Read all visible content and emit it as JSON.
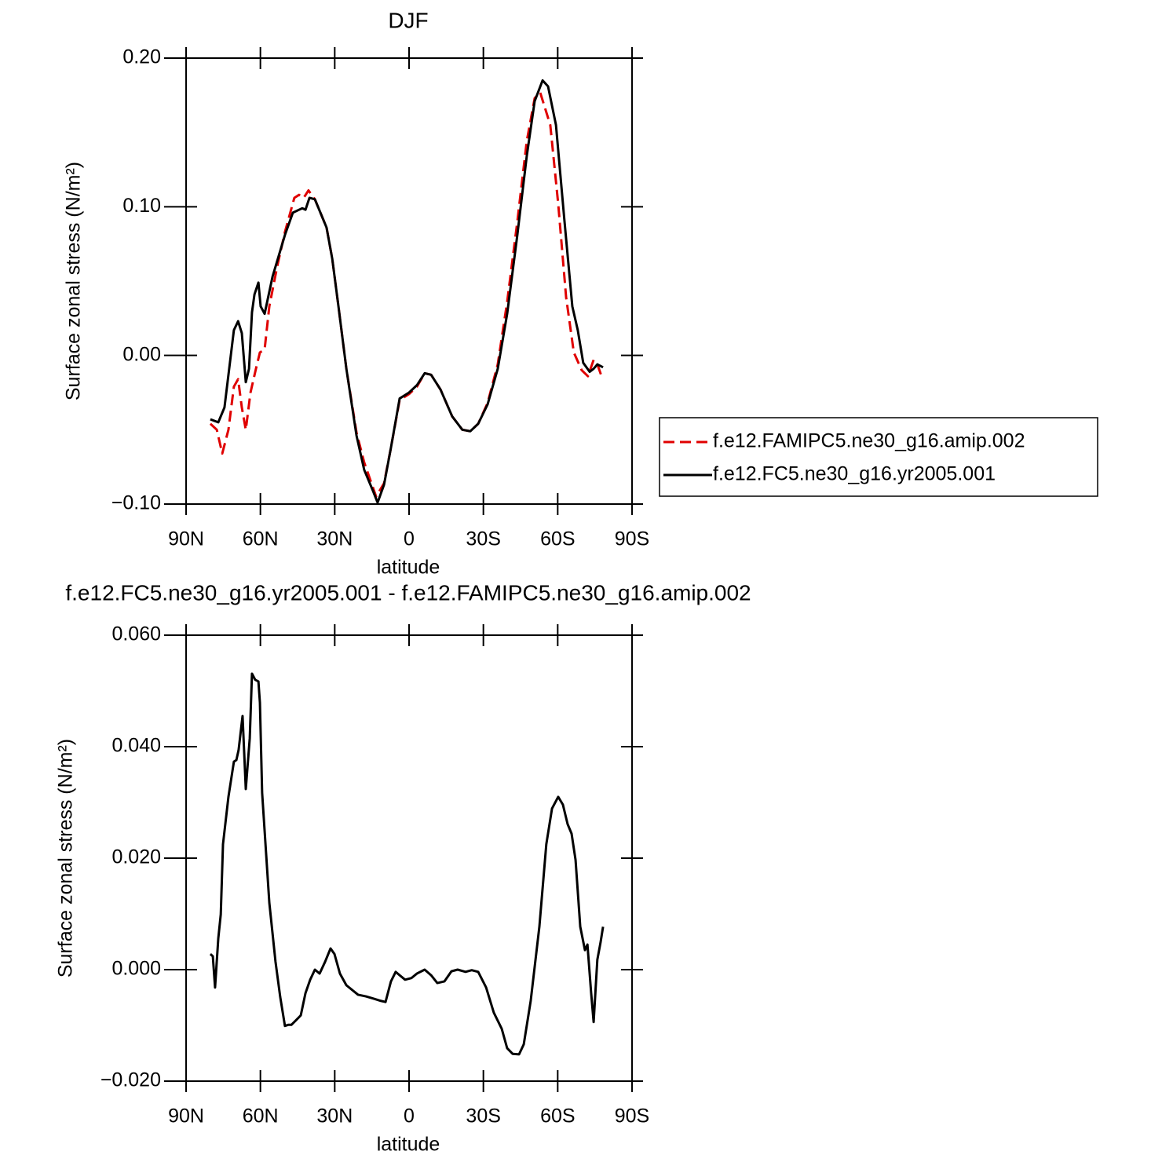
{
  "chart_data": [
    {
      "type": "line",
      "title": "DJF",
      "xlabel": "latitude",
      "ylabel": "Surface zonal stress (N/m²)",
      "xlim": [
        90,
        -90
      ],
      "xticks": [
        {
          "value": 90,
          "label": "90N"
        },
        {
          "value": 60,
          "label": "60N"
        },
        {
          "value": 30,
          "label": "30N"
        },
        0,
        {
          "value": -30,
          "label": "30S"
        },
        {
          "value": -60,
          "label": "60S"
        },
        {
          "value": -90,
          "label": "90S"
        }
      ],
      "ylim": [
        -0.1,
        0.2
      ],
      "yticks": [
        {
          "value": -0.1,
          "label": "−0.10"
        },
        {
          "value": 0,
          "label": "0.00"
        },
        {
          "value": 0.1,
          "label": "0.10"
        },
        {
          "value": 0.2,
          "label": "0.20"
        }
      ],
      "legend": "outside-right",
      "series": [
        {
          "name": "f.e12.FAMIPC5.ne30_g16.amip.002",
          "color": "#e00000",
          "dashed": true,
          "x": [
            80.2,
            77.6,
            75.4,
            72.9,
            70.7,
            69,
            67.5,
            65.9,
            64,
            61.8,
            60.2,
            58.3,
            56.4,
            53.2,
            50.1,
            46.3,
            44.4,
            42.5,
            40.6,
            38,
            33.3,
            31,
            28.5,
            25.3,
            21.2,
            18.1,
            13.3,
            10.1,
            7.3,
            3.8,
            0,
            -3.2,
            -6.3,
            -8.9,
            -12.7,
            -17.4,
            -21.5,
            -24.7,
            -27.9,
            -31.7,
            -35.8,
            -39.6,
            -43.7,
            -47.5,
            -50.7,
            -52.9,
            -57,
            -60.2,
            -63.4,
            -66.5,
            -69.7,
            -72.2,
            -74.5,
            -76,
            -77.9
          ],
          "values": [
            -0.046,
            -0.05,
            -0.066,
            -0.05,
            -0.021,
            -0.016,
            -0.035,
            -0.05,
            -0.025,
            -0.009,
            0.002,
            0.004,
            0.033,
            0.06,
            0.083,
            0.106,
            0.108,
            0.106,
            0.111,
            0.105,
            0.086,
            0.065,
            0.033,
            -0.009,
            -0.052,
            -0.072,
            -0.095,
            -0.086,
            -0.062,
            -0.03,
            -0.026,
            -0.021,
            -0.012,
            -0.013,
            -0.023,
            -0.041,
            -0.05,
            -0.051,
            -0.046,
            -0.032,
            -0.006,
            0.036,
            0.09,
            0.144,
            0.173,
            0.177,
            0.155,
            0.102,
            0.039,
            0.002,
            -0.01,
            -0.014,
            -0.003,
            -0.006,
            -0.015
          ]
        },
        {
          "name": "f.e12.FC5.ne30_g16.yr2005.001",
          "color": "#000000",
          "dashed": false,
          "x": [
            80.2,
            77,
            74.5,
            70.7,
            69,
            67.5,
            65.9,
            64.6,
            63.4,
            62.4,
            60.8,
            59.9,
            58.3,
            55.1,
            50.1,
            46.9,
            43.1,
            41.8,
            40.2,
            38,
            33.3,
            31,
            28.5,
            25.3,
            21.2,
            18.1,
            14.6,
            12.7,
            10.1,
            7.3,
            3.8,
            0,
            -3.2,
            -6.3,
            -8.9,
            -12.7,
            -17.4,
            -21.5,
            -24.7,
            -27.9,
            -31.7,
            -35.8,
            -39.6,
            -43.7,
            -47.5,
            -50.7,
            -53.9,
            -56.1,
            -59.3,
            -62.7,
            -65.9,
            -68.1,
            -70.3,
            -72.9,
            -74.5,
            -76,
            -78.3
          ],
          "values": [
            -0.043,
            -0.045,
            -0.035,
            0.017,
            0.023,
            0.015,
            -0.018,
            -0.009,
            0.029,
            0.041,
            0.049,
            0.033,
            0.028,
            0.053,
            0.081,
            0.096,
            0.099,
            0.098,
            0.106,
            0.105,
            0.086,
            0.065,
            0.033,
            -0.009,
            -0.054,
            -0.077,
            -0.091,
            -0.099,
            -0.087,
            -0.062,
            -0.029,
            -0.025,
            -0.02,
            -0.012,
            -0.013,
            -0.023,
            -0.041,
            -0.05,
            -0.051,
            -0.046,
            -0.033,
            -0.009,
            0.028,
            0.081,
            0.134,
            0.171,
            0.185,
            0.181,
            0.155,
            0.091,
            0.033,
            0.017,
            -0.005,
            -0.011,
            -0.009,
            -0.006,
            -0.008
          ]
        }
      ]
    },
    {
      "type": "line",
      "title": "f.e12.FC5.ne30_g16.yr2005.001 - f.e12.FAMIPC5.ne30_g16.amip.002",
      "xlabel": "latitude",
      "ylabel": "Surface zonal stress (N/m²)",
      "xlim": [
        90,
        -90
      ],
      "xticks": [
        {
          "value": 90,
          "label": "90N"
        },
        {
          "value": 60,
          "label": "60N"
        },
        {
          "value": 30,
          "label": "30N"
        },
        0,
        {
          "value": -30,
          "label": "30S"
        },
        {
          "value": -60,
          "label": "60S"
        },
        {
          "value": -90,
          "label": "90S"
        }
      ],
      "ylim": [
        -0.02,
        0.06
      ],
      "yticks": [
        {
          "value": -0.02,
          "label": "−0.020"
        },
        {
          "value": 0,
          "label": "0.000"
        },
        {
          "value": 0.02,
          "label": "0.020"
        },
        {
          "value": 0.04,
          "label": "0.040"
        },
        {
          "value": 0.06,
          "label": "0.060"
        }
      ],
      "series": [
        {
          "color": "#000000",
          "dashed": false,
          "x": [
            80.2,
            79.2,
            78.3,
            77,
            76,
            75.1,
            72.9,
            70.7,
            69.7,
            68.8,
            67.2,
            65.9,
            64.3,
            63.4,
            62.1,
            60.8,
            60.2,
            59.3,
            56.4,
            53.9,
            52,
            50.1,
            48.8,
            47.5,
            45.9,
            43.7,
            41.8,
            39.9,
            38,
            36.1,
            33.9,
            31.7,
            30.1,
            27.9,
            25.3,
            20.6,
            17.4,
            14.3,
            11.4,
            9.5,
            7.3,
            5.4,
            3.8,
            1.6,
            -1,
            -3.2,
            -6.3,
            -8.9,
            -11.4,
            -14.3,
            -17.1,
            -19.6,
            -22.8,
            -25.3,
            -27.9,
            -31.1,
            -34.2,
            -37.4,
            -39.6,
            -41.8,
            -44.4,
            -46.3,
            -49.1,
            -52.6,
            -55.4,
            -57.7,
            -60.2,
            -62.1,
            -64,
            -65.6,
            -67.2,
            -69.1,
            -71,
            -72,
            -73.5,
            -74.5,
            -76,
            -77.3,
            -78.3
          ],
          "values": [
            0.0028,
            0.0024,
            -0.0032,
            0.0056,
            0.0099,
            0.0225,
            0.031,
            0.0373,
            0.0376,
            0.0394,
            0.0455,
            0.0324,
            0.0415,
            0.0531,
            0.052,
            0.0517,
            0.0479,
            0.0317,
            0.012,
            0.0014,
            -0.0049,
            -0.0101,
            -0.0099,
            -0.0099,
            -0.0092,
            -0.0082,
            -0.0042,
            -0.0018,
            0,
            -0.0007,
            0.0014,
            0.0038,
            0.0028,
            -0.0007,
            -0.0028,
            -0.0045,
            -0.0048,
            -0.0052,
            -0.0056,
            -0.0058,
            -0.0021,
            -0.0004,
            -0.001,
            -0.0018,
            -0.0015,
            -0.0007,
            0,
            -0.001,
            -0.0024,
            -0.0021,
            -0.0003,
            0,
            -0.0004,
            -0.0001,
            -0.0004,
            -0.0032,
            -0.0077,
            -0.0106,
            -0.0141,
            -0.0151,
            -0.0152,
            -0.0134,
            -0.0056,
            0.0077,
            0.0225,
            0.0289,
            0.031,
            0.0296,
            0.0261,
            0.0244,
            0.0197,
            0.0077,
            0.0035,
            0.0045,
            -0.0042,
            -0.0094,
            0.0018,
            0.0049,
            0.0077
          ]
        }
      ]
    }
  ]
}
